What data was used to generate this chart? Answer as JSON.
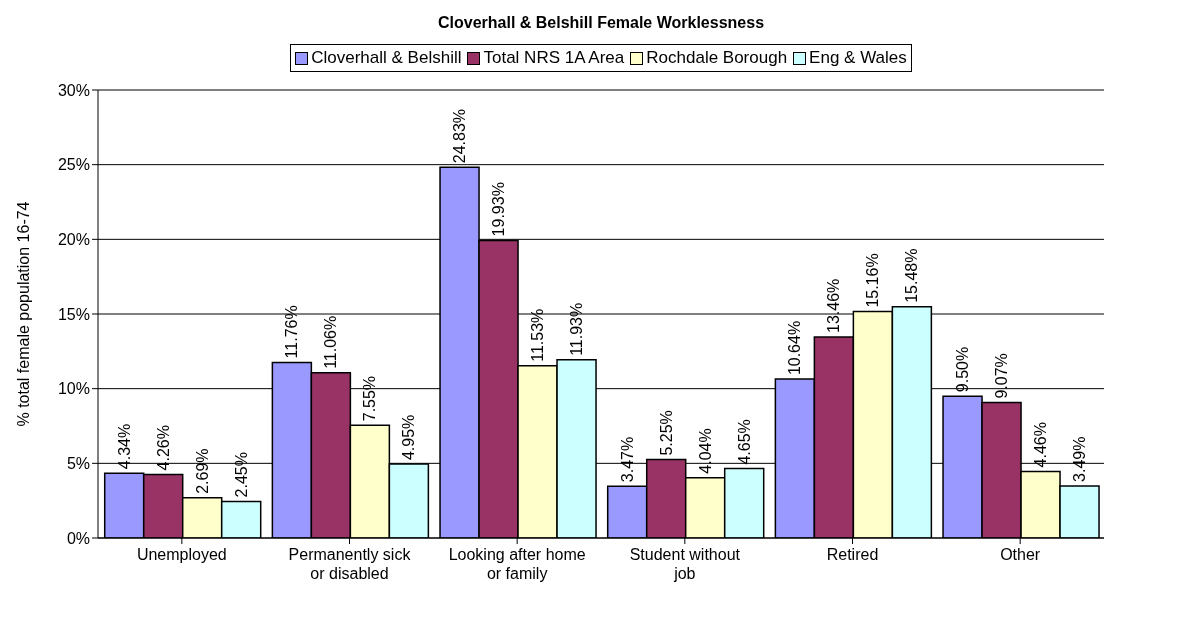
{
  "chart_data": {
    "type": "bar",
    "title": "Cloverhall & Belshill Female Worklessness",
    "ylabel": "% total female population 16-74",
    "categories": [
      "Unemployed",
      "Permanently sick or disabled",
      "Looking after home or family",
      "Student without job",
      "Retired",
      "Other"
    ],
    "series": [
      {
        "name": "Cloverhall & Belshill",
        "color": "#9999ff",
        "values": [
          4.34,
          11.76,
          24.83,
          3.47,
          10.64,
          9.5
        ],
        "value_labels": [
          "4.34%",
          "11.76%",
          "24.83%",
          "3.47%",
          "10.64%",
          "9.50%"
        ]
      },
      {
        "name": "Total NRS 1A Area",
        "color": "#993366",
        "values": [
          4.26,
          11.06,
          19.93,
          5.25,
          13.46,
          9.07
        ],
        "value_labels": [
          "4.26%",
          "11.06%",
          "19.93%",
          "5.25%",
          "13.46%",
          "9.07%"
        ]
      },
      {
        "name": "Rochdale Borough",
        "color": "#ffffcc",
        "values": [
          2.69,
          7.55,
          11.53,
          4.04,
          15.16,
          4.46
        ],
        "value_labels": [
          "2.69%",
          "7.55%",
          "11.53%",
          "4.04%",
          "15.16%",
          "4.46%"
        ]
      },
      {
        "name": "Eng & Wales",
        "color": "#ccffff",
        "values": [
          2.45,
          4.95,
          11.93,
          4.65,
          15.48,
          3.49
        ],
        "value_labels": [
          "2.45%",
          "4.95%",
          "11.93%",
          "4.65%",
          "15.48%",
          "3.49%"
        ]
      }
    ],
    "ylim": [
      0,
      30
    ],
    "yticks": [
      {
        "value": 0,
        "label": "0%"
      },
      {
        "value": 5,
        "label": "5%"
      },
      {
        "value": 10,
        "label": "10%"
      },
      {
        "value": 15,
        "label": "15%"
      },
      {
        "value": 20,
        "label": "20%"
      },
      {
        "value": 25,
        "label": "25%"
      },
      {
        "value": 30,
        "label": "30%"
      }
    ],
    "grid": "y",
    "legend": "top"
  }
}
